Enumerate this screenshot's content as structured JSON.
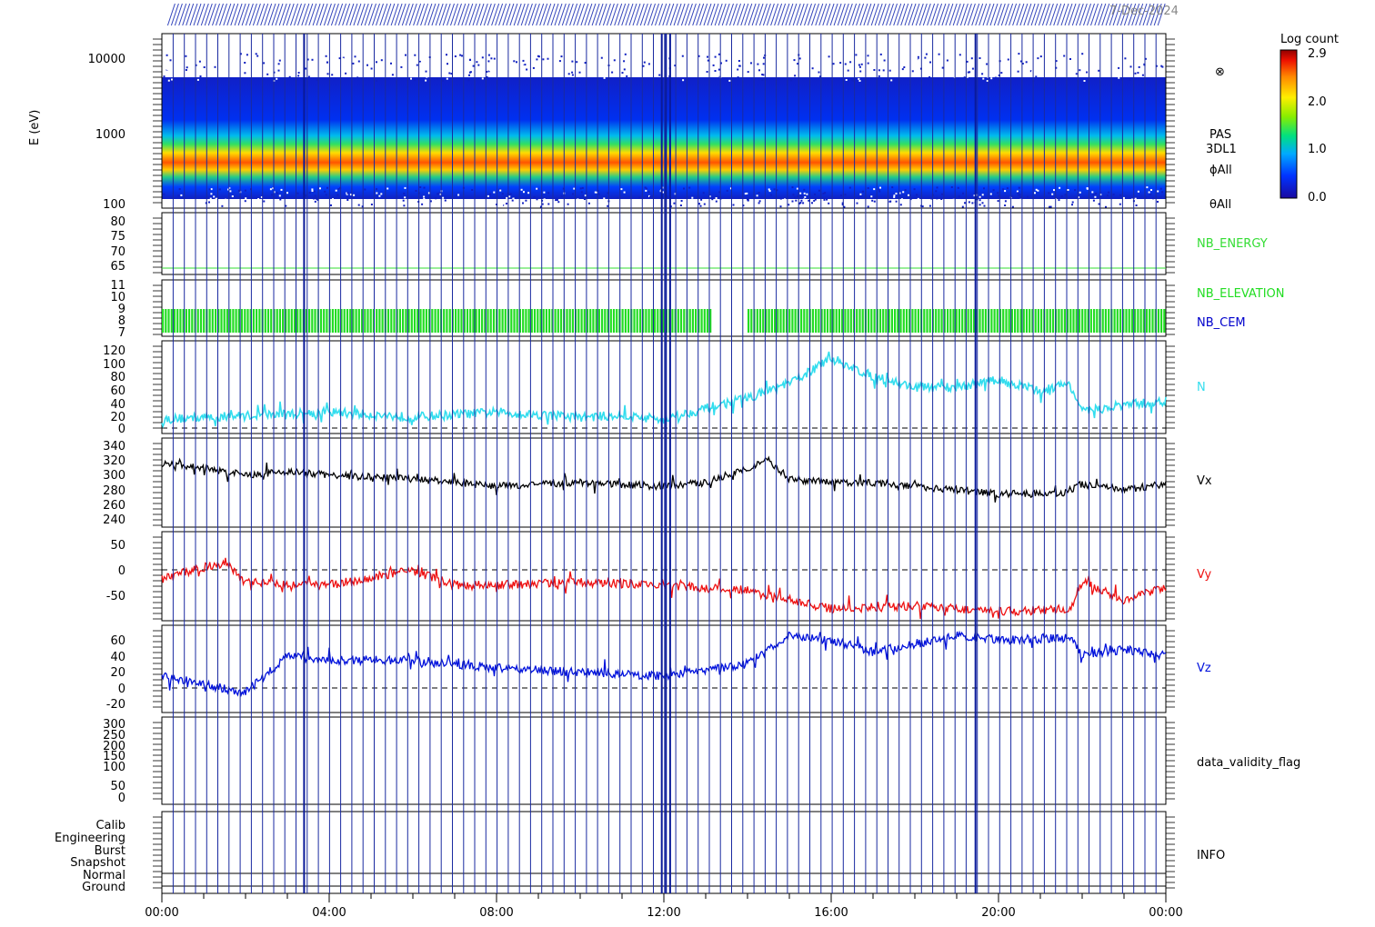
{
  "header": {
    "date_label": "7-Dec-2024"
  },
  "colorbar": {
    "title": "Log count",
    "ticks": [
      "2.9",
      "2.0",
      "1.0",
      "0.0"
    ]
  },
  "x_axis": {
    "ticks": [
      "00:00",
      "04:00",
      "08:00",
      "12:00",
      "16:00",
      "20:00",
      "00:00"
    ]
  },
  "panels": {
    "spectrogram": {
      "ylabel": "E (eV)",
      "ticks": [
        "10000",
        "1000",
        "100"
      ],
      "labels": [
        "PAS",
        "3DL1",
        "ϕAll",
        "θAll"
      ],
      "symbol": "⊗"
    },
    "energy": {
      "ticks": [
        "80",
        "75",
        "70",
        "65"
      ],
      "label": "NB_ENERGY",
      "color": "#33dd33"
    },
    "elevation": {
      "ticks": [
        "11",
        "10",
        "9",
        "8",
        "7"
      ],
      "label": "NB_ELEVATION",
      "label2": "NB_CEM",
      "color": "#22dd22",
      "color2": "#0000cc"
    },
    "density": {
      "ticks": [
        "120",
        "100",
        "80",
        "60",
        "40",
        "20",
        "0"
      ],
      "label": "N",
      "color": "#33ddee"
    },
    "vx": {
      "ticks": [
        "340",
        "320",
        "300",
        "280",
        "260",
        "240"
      ],
      "label": "Vx",
      "color": "#000000"
    },
    "vy": {
      "ticks": [
        "50",
        "0",
        "-50"
      ],
      "label": "Vy",
      "color": "#ee1111"
    },
    "vz": {
      "ticks": [
        "60",
        "40",
        "20",
        "0",
        "-20"
      ],
      "label": "Vz",
      "color": "#0011dd"
    },
    "validity": {
      "ticks": [
        "300",
        "250",
        "200",
        "150",
        "100",
        "50",
        "0"
      ],
      "label": "data_validity_flag"
    },
    "info": {
      "ticks": [
        "Calib",
        "Engineering",
        "Burst",
        "Snapshot",
        "Normal",
        "Ground"
      ],
      "label": "INFO"
    }
  },
  "chart_data": [
    {
      "type": "heatmap",
      "ylabel": "E (eV)",
      "yscale": "log",
      "ylim": [
        100,
        14000
      ],
      "xlim": [
        "00:00",
        "24:00"
      ],
      "colorbar_range": [
        0.0,
        2.9
      ],
      "peak_energy_ev": [
        [
          0,
          560
        ],
        [
          4,
          560
        ],
        [
          8,
          560
        ],
        [
          12,
          560
        ],
        [
          16,
          520
        ],
        [
          20,
          500
        ],
        [
          24,
          480
        ]
      ]
    },
    {
      "type": "line",
      "name": "N",
      "ylim": [
        -5,
        125
      ],
      "x_hours": [
        0,
        2,
        4,
        6,
        8,
        10,
        11,
        12,
        13,
        14,
        15,
        16,
        17,
        18,
        19,
        20,
        21,
        21.7,
        22,
        23,
        24
      ],
      "y": [
        15,
        20,
        25,
        18,
        25,
        18,
        20,
        15,
        30,
        45,
        65,
        100,
        75,
        60,
        60,
        70,
        55,
        65,
        25,
        35,
        40
      ]
    },
    {
      "type": "line",
      "name": "Vx",
      "ylim": [
        230,
        350
      ],
      "x_hours": [
        0,
        1,
        2,
        3,
        4,
        6,
        8,
        10,
        12,
        13,
        14,
        14.5,
        15,
        16,
        17,
        18,
        20,
        21.5,
        22,
        23,
        24
      ],
      "y": [
        315,
        310,
        300,
        305,
        300,
        295,
        285,
        290,
        285,
        290,
        310,
        320,
        295,
        290,
        290,
        285,
        275,
        275,
        288,
        280,
        288
      ]
    },
    {
      "type": "line",
      "name": "Vy",
      "ylim": [
        -80,
        70
      ],
      "x_hours": [
        0,
        1.5,
        2,
        4,
        6,
        7,
        8,
        10,
        12,
        14,
        15,
        16,
        18,
        20,
        21.7,
        22,
        23,
        24
      ],
      "y": [
        -10,
        20,
        -15,
        -20,
        5,
        -20,
        -20,
        -15,
        -20,
        -30,
        -45,
        -60,
        -55,
        -65,
        -60,
        -15,
        -45,
        -25
      ]
    },
    {
      "type": "line",
      "name": "Vz",
      "ylim": [
        -30,
        78
      ],
      "x_hours": [
        0,
        1,
        2,
        3,
        4,
        6,
        8,
        10,
        12,
        14,
        15,
        16,
        17,
        18,
        19,
        20,
        21.7,
        22,
        23,
        24
      ],
      "y": [
        15,
        5,
        -5,
        40,
        35,
        35,
        25,
        20,
        15,
        30,
        65,
        60,
        45,
        55,
        65,
        60,
        62,
        42,
        48,
        40
      ]
    }
  ]
}
